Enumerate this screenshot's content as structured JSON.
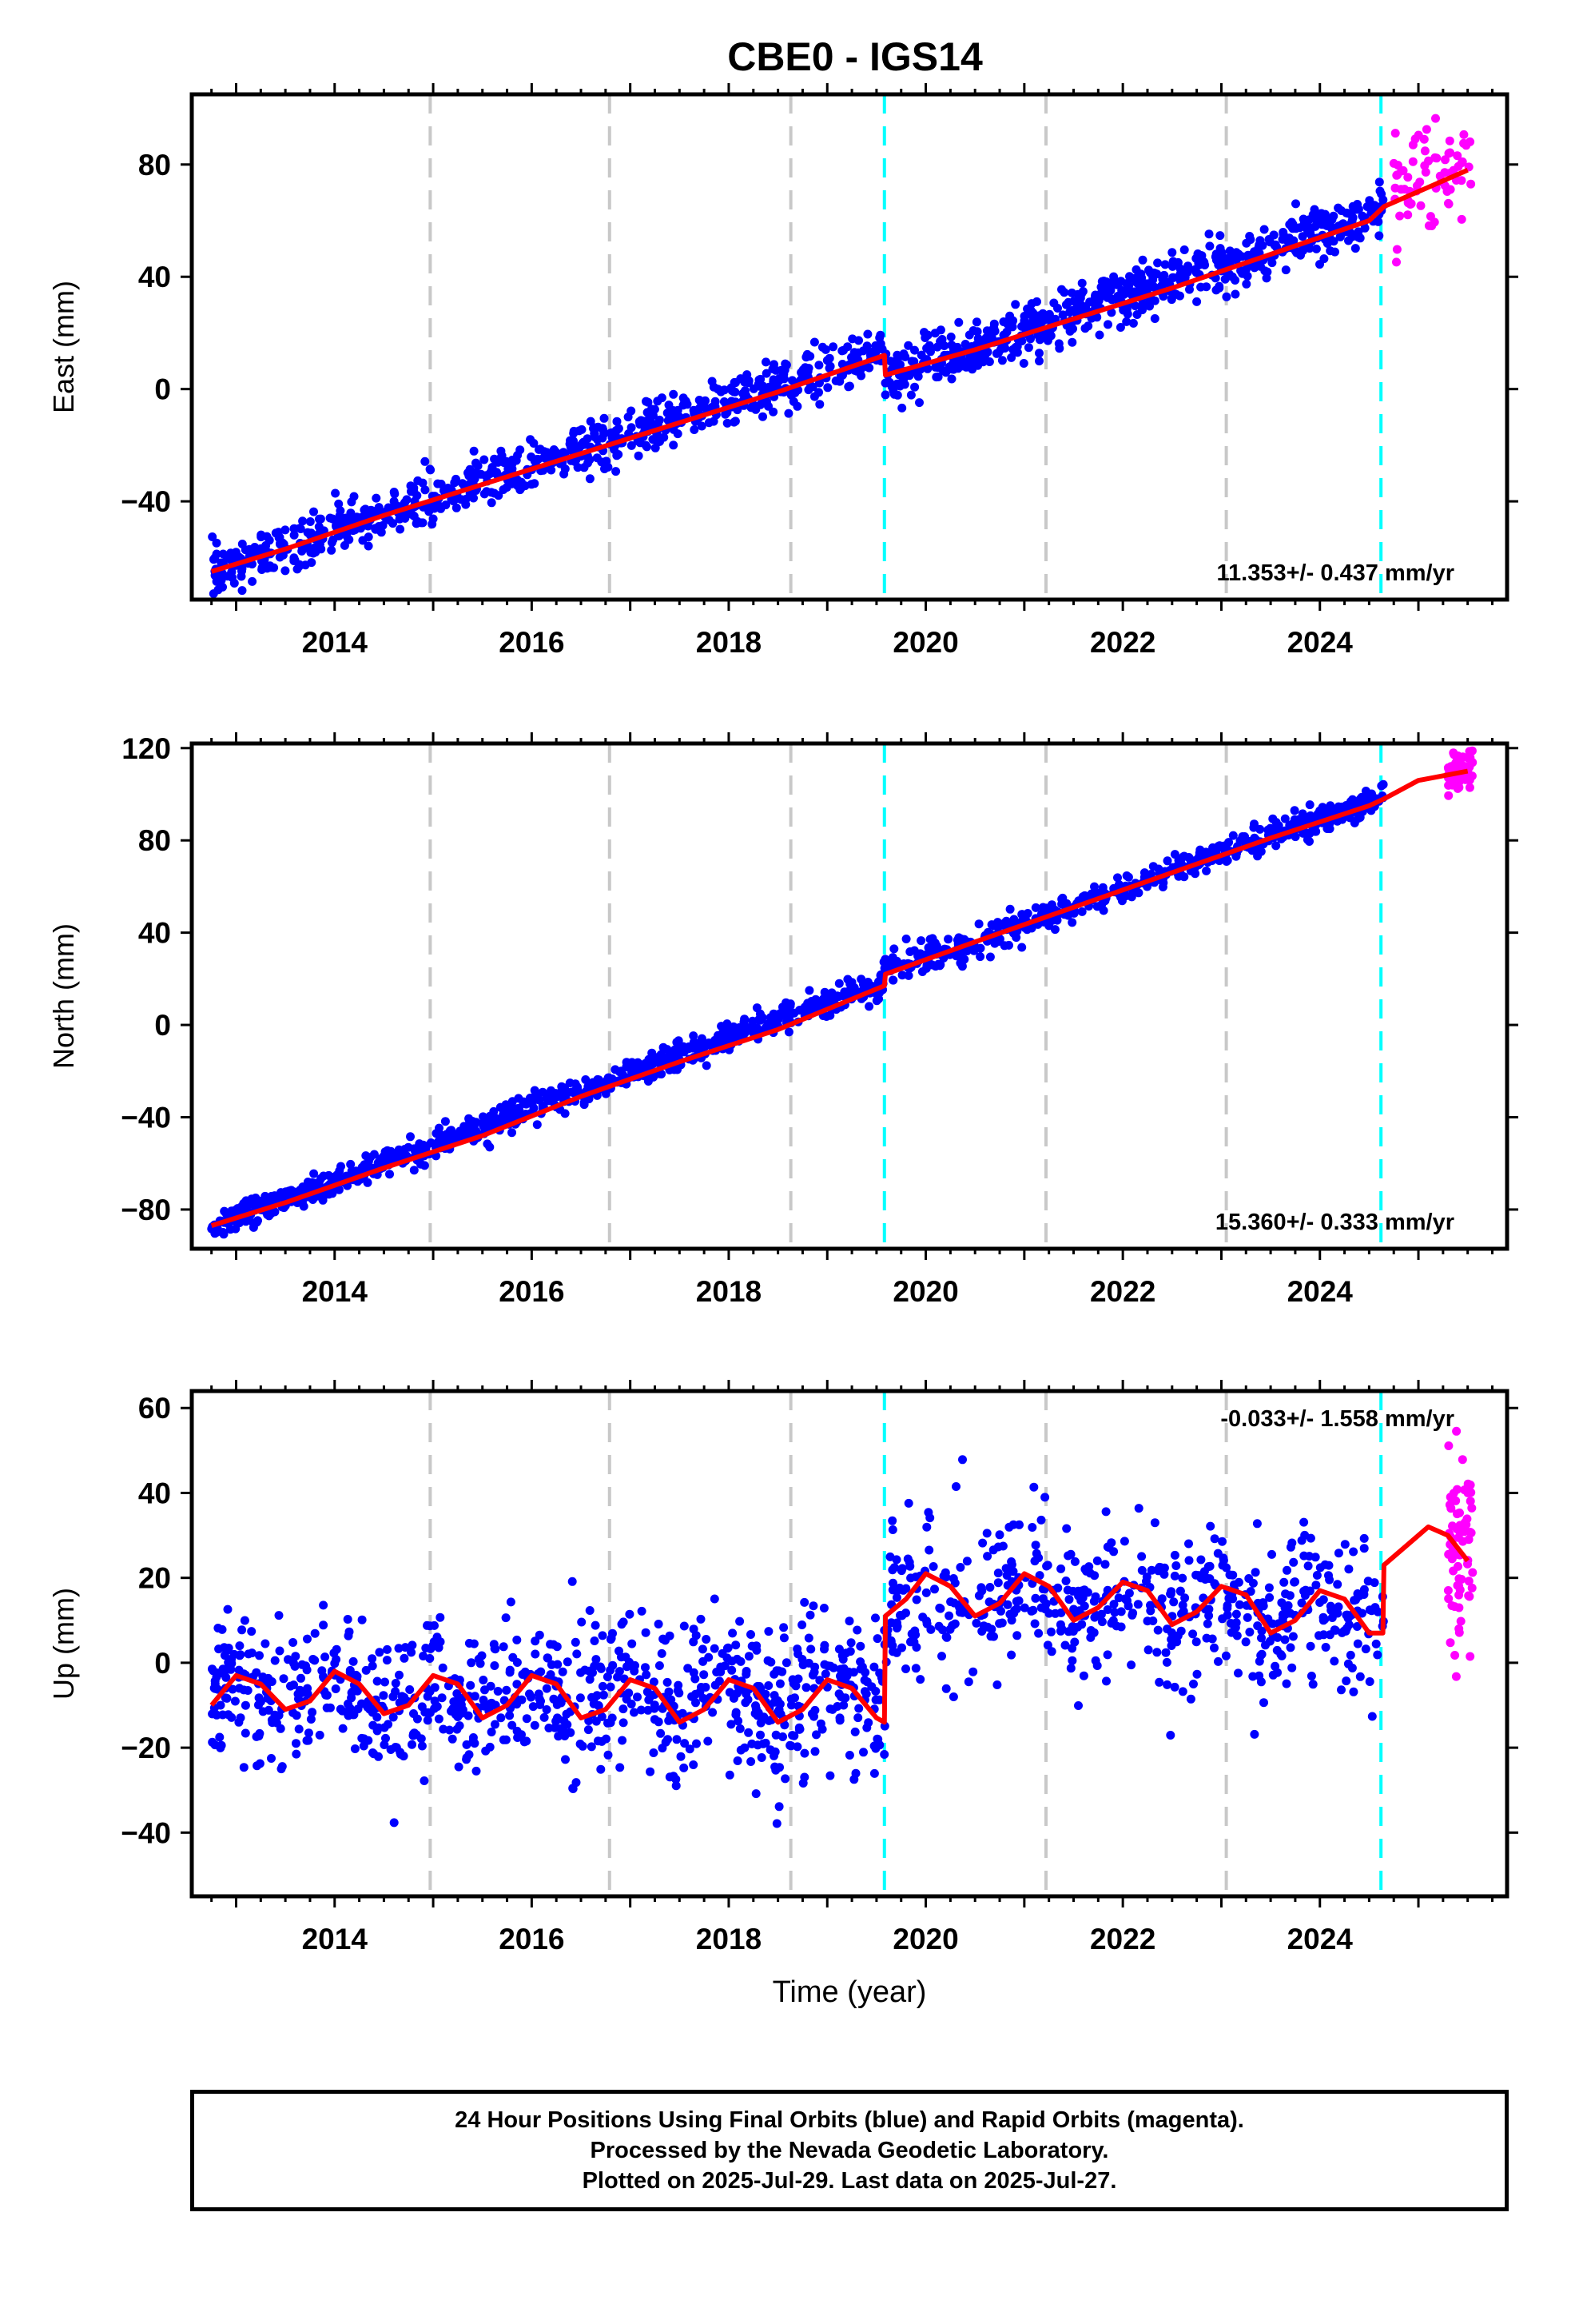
{
  "title": "CBE0 - IGS14",
  "footer": {
    "line1": "24 Hour Positions Using Final Orbits (blue) and Rapid Orbits (magenta).",
    "line2": "Processed by the Nevada Geodetic Laboratory.",
    "line3": "Plotted on 2025-Jul-29. Last data on 2025-Jul-27."
  },
  "colors": {
    "final_orbits": "#0000ff",
    "rapid_orbits": "#ff00ff",
    "model": "#ff0000",
    "equipment_change": "#c8c8c8",
    "earthquake_offset": "#00ffff"
  },
  "chart_data": [
    {
      "type": "scatter",
      "panel": "east",
      "xlabel": "",
      "ylabel": "East (mm)",
      "xlim": [
        2012.55,
        2025.9
      ],
      "ylim": [
        -75,
        105
      ],
      "xticks": [
        2014,
        2016,
        2018,
        2020,
        2022,
        2024
      ],
      "yticks": [
        -40,
        0,
        40,
        80
      ],
      "rate_label": "11.353+/- 0.437 mm/yr",
      "rate_position": "bottom-right",
      "series": [
        {
          "role": "final-orbits",
          "x": [
            2012.75,
            2013.0,
            2013.5,
            2014.0,
            2014.5,
            2015.0,
            2015.5,
            2016.0,
            2016.5,
            2017.0,
            2017.5,
            2018.0,
            2018.5,
            2019.0,
            2019.5,
            2019.58,
            2019.59,
            2020.0,
            2020.5,
            2021.0,
            2021.5,
            2022.0,
            2022.5,
            2023.0,
            2023.5,
            2024.0,
            2024.5,
            2024.65
          ],
          "y": [
            -65,
            -62,
            -57,
            -51,
            -45,
            -39,
            -33,
            -28,
            -22,
            -17,
            -11,
            -5,
            1,
            7,
            12,
            13,
            4,
            9,
            15,
            21,
            27,
            33,
            39,
            44,
            50,
            56,
            62,
            65
          ],
          "noise": 4.5
        },
        {
          "role": "rapid-orbits",
          "x": [
            2024.75,
            2025.55
          ],
          "y": [
            75,
            80
          ],
          "noise": 9
        },
        {
          "role": "model",
          "x": [
            2012.75,
            2013.5,
            2014.5,
            2015.5,
            2016.5,
            2017.5,
            2018.5,
            2019.58,
            2019.59,
            2020.5,
            2021.5,
            2022.5,
            2023.5,
            2024.5,
            2024.65,
            2025.5
          ],
          "y": [
            -65,
            -57,
            -45,
            -34,
            -23,
            -12,
            -1,
            12,
            5,
            14,
            25,
            36,
            48,
            60,
            65,
            78
          ]
        }
      ],
      "vlines_equipment": [
        2014.97,
        2016.79,
        2018.63,
        2021.22,
        2023.05
      ],
      "vlines_offsets": [
        2019.58,
        2024.62
      ]
    },
    {
      "type": "scatter",
      "panel": "north",
      "xlabel": "",
      "ylabel": "North (mm)",
      "xlim": [
        2012.55,
        2025.9
      ],
      "ylim": [
        -97,
        122
      ],
      "xticks": [
        2014,
        2016,
        2018,
        2020,
        2022,
        2024
      ],
      "yticks": [
        -80,
        -40,
        0,
        40,
        80,
        120
      ],
      "rate_label": "15.360+/- 0.333 mm/yr",
      "rate_position": "bottom-right",
      "series": [
        {
          "role": "final-orbits",
          "x": [
            2012.75,
            2013.0,
            2013.5,
            2014.0,
            2014.5,
            2015.0,
            2015.5,
            2016.0,
            2016.5,
            2017.0,
            2017.5,
            2018.0,
            2018.5,
            2019.0,
            2019.5,
            2019.58,
            2019.59,
            2020.0,
            2020.5,
            2021.0,
            2021.5,
            2022.0,
            2022.5,
            2023.0,
            2023.5,
            2024.0,
            2024.5,
            2024.65
          ],
          "y": [
            -87,
            -83,
            -76,
            -68,
            -60,
            -52,
            -44,
            -36,
            -29,
            -21,
            -13,
            -5,
            3,
            10,
            16,
            18,
            24,
            29,
            36,
            44,
            51,
            59,
            67,
            74,
            82,
            89,
            96,
            98
          ],
          "noise": 3
        },
        {
          "role": "rapid-orbits",
          "x": [
            2025.3,
            2025.55
          ],
          "y": [
            108,
            112
          ],
          "noise": 4
        },
        {
          "role": "model",
          "x": [
            2012.75,
            2013.5,
            2014.5,
            2015.5,
            2016.5,
            2017.5,
            2018.5,
            2019.58,
            2019.59,
            2020.5,
            2021.5,
            2022.5,
            2023.5,
            2024.5,
            2024.65,
            2025.0,
            2025.5
          ],
          "y": [
            -87,
            -77,
            -62,
            -48,
            -31,
            -16,
            -2,
            17,
            22,
            36,
            51,
            66,
            81,
            95,
            98,
            106,
            110
          ]
        }
      ],
      "vlines_equipment": [
        2014.97,
        2016.79,
        2018.63,
        2021.22,
        2023.05
      ],
      "vlines_offsets": [
        2019.58,
        2024.62
      ]
    },
    {
      "type": "scatter",
      "panel": "up",
      "xlabel": "Time (year)",
      "ylabel": "Up (mm)",
      "xlim": [
        2012.55,
        2025.9
      ],
      "ylim": [
        -55,
        64
      ],
      "xticks": [
        2014,
        2016,
        2018,
        2020,
        2022,
        2024
      ],
      "yticks": [
        -40,
        -20,
        0,
        20,
        40,
        60
      ],
      "rate_label": "-0.033+/- 1.558 mm/yr",
      "rate_position": "top-right",
      "series": [
        {
          "role": "final-orbits",
          "x": [
            2012.75,
            2013.0,
            2013.5,
            2014.0,
            2014.5,
            2015.0,
            2015.5,
            2016.0,
            2016.5,
            2017.0,
            2017.5,
            2018.0,
            2018.5,
            2019.0,
            2019.5,
            2019.58,
            2019.59,
            2020.0,
            2020.5,
            2021.0,
            2021.5,
            2022.0,
            2022.5,
            2023.0,
            2023.5,
            2024.0,
            2024.5,
            2024.65
          ],
          "y": [
            -8,
            -3,
            -10,
            -3,
            -11,
            -4,
            -12,
            -4,
            -12,
            -5,
            -13,
            -5,
            -13,
            -5,
            -11,
            -12,
            10,
            19,
            12,
            20,
            10,
            18,
            10,
            17,
            8,
            17,
            8,
            8
          ],
          "noise": 9
        },
        {
          "role": "rapid-orbits",
          "x": [
            2025.3,
            2025.55
          ],
          "y": [
            25,
            30
          ],
          "noise": 11
        },
        {
          "role": "model",
          "x": [
            2012.75,
            2013.0,
            2013.25,
            2013.5,
            2013.75,
            2014.0,
            2014.25,
            2014.5,
            2014.75,
            2015.0,
            2015.25,
            2015.5,
            2015.75,
            2016.0,
            2016.25,
            2016.5,
            2016.75,
            2017.0,
            2017.25,
            2017.5,
            2017.75,
            2018.0,
            2018.25,
            2018.5,
            2018.75,
            2019.0,
            2019.25,
            2019.5,
            2019.58,
            2019.59,
            2019.8,
            2020.0,
            2020.25,
            2020.5,
            2020.75,
            2021.0,
            2021.25,
            2021.5,
            2021.75,
            2022.0,
            2022.25,
            2022.5,
            2022.75,
            2023.0,
            2023.25,
            2023.5,
            2023.75,
            2024.0,
            2024.25,
            2024.5,
            2024.64,
            2024.65,
            2024.9,
            2025.1,
            2025.3,
            2025.5
          ],
          "y": [
            -10,
            -3,
            -5,
            -11,
            -9,
            -2,
            -5,
            -12,
            -10,
            -3,
            -5,
            -13,
            -10,
            -3,
            -5,
            -13,
            -11,
            -4,
            -6,
            -14,
            -11,
            -4,
            -6,
            -14,
            -11,
            -4,
            -6,
            -13,
            -14,
            11,
            15,
            21,
            18,
            11,
            14,
            21,
            18,
            10,
            13,
            19,
            17,
            9,
            12,
            18,
            16,
            7,
            10,
            17,
            15,
            7,
            7,
            23,
            28,
            32,
            30,
            24
          ]
        }
      ],
      "vlines_equipment": [
        2014.97,
        2016.79,
        2018.63,
        2021.22,
        2023.05
      ],
      "vlines_offsets": [
        2019.58,
        2024.62
      ]
    }
  ]
}
